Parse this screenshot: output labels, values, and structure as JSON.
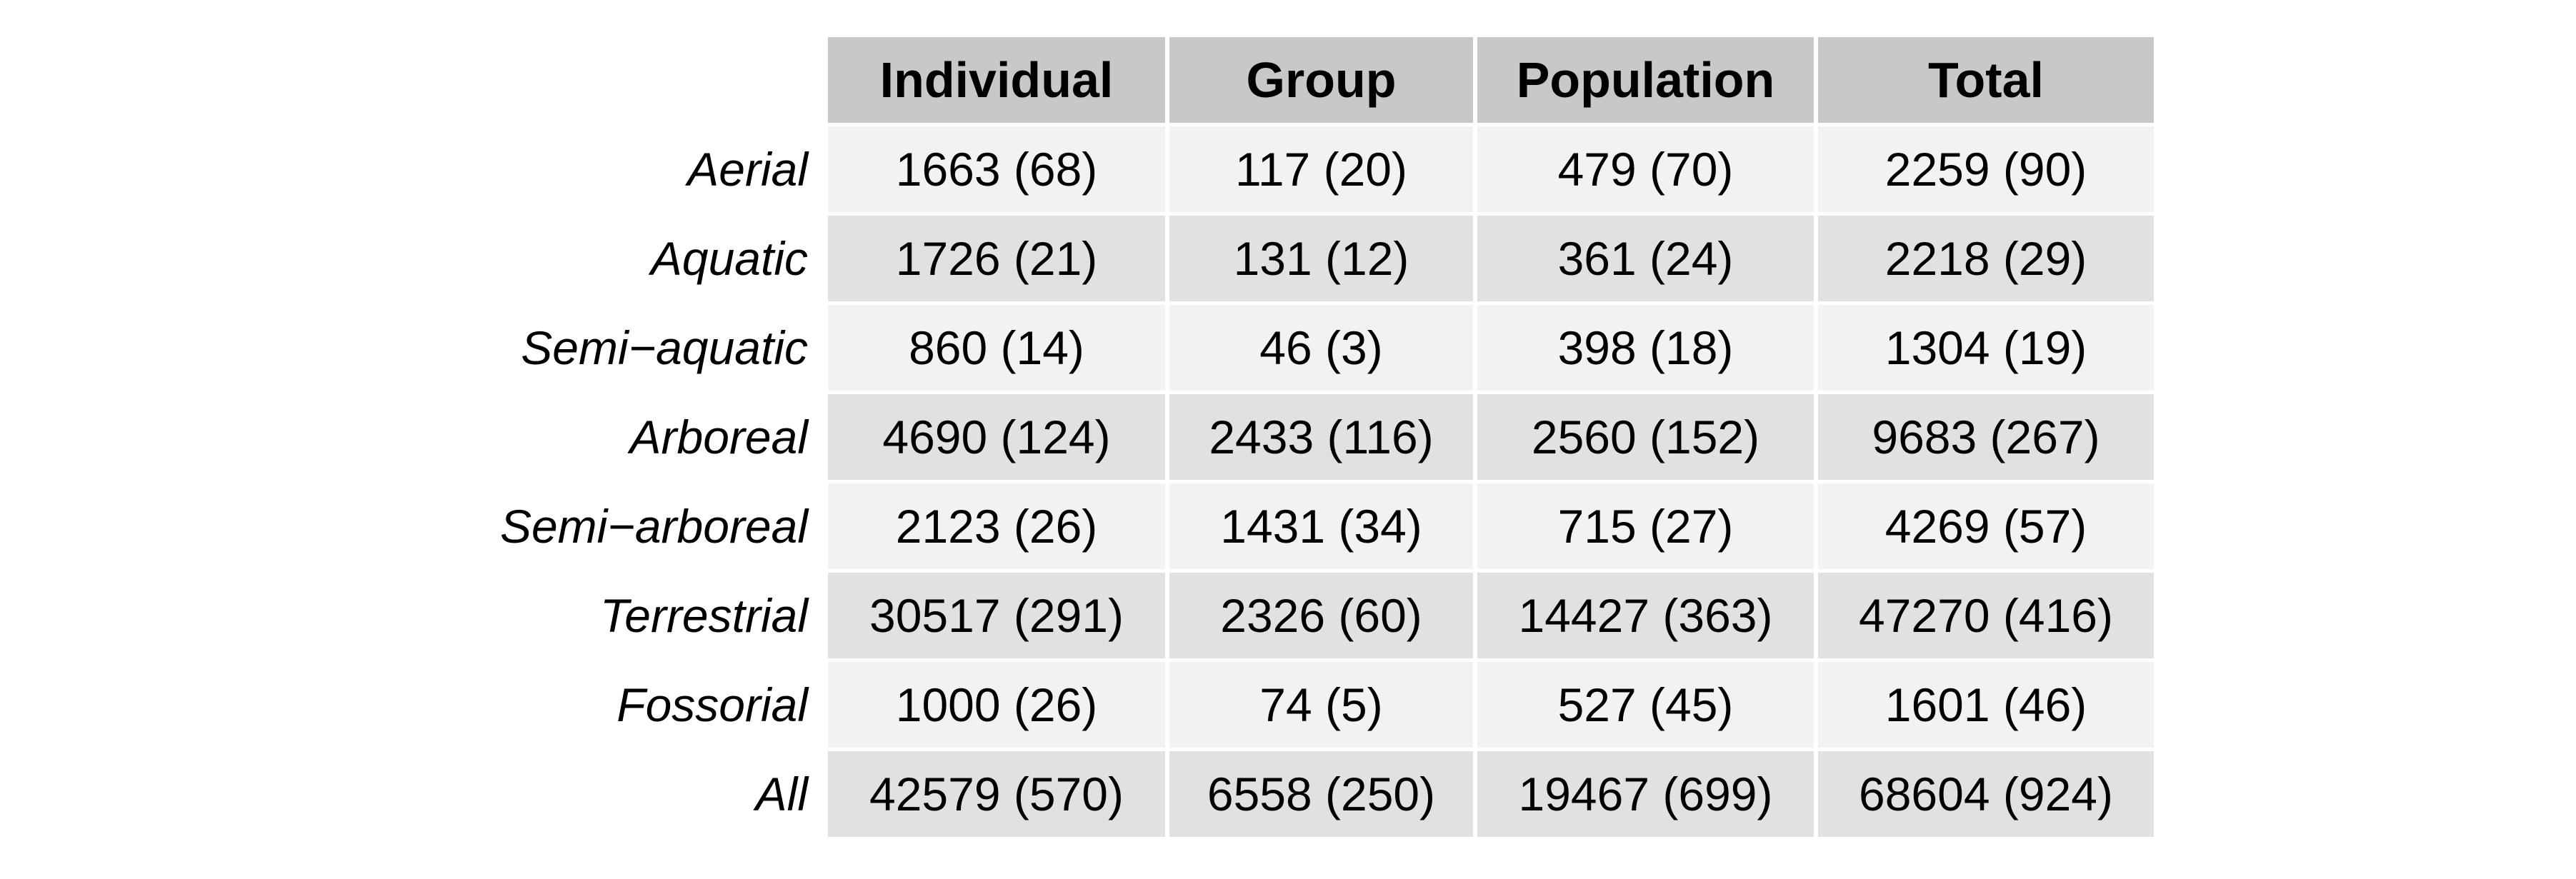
{
  "chart_data": {
    "type": "table",
    "title": "",
    "columns": [
      "Individual",
      "Group",
      "Population",
      "Total"
    ],
    "rows": [
      {
        "label": "Aerial",
        "cells": [
          "1663 (68)",
          "117 (20)",
          "479 (70)",
          "2259 (90)"
        ]
      },
      {
        "label": "Aquatic",
        "cells": [
          "1726 (21)",
          "131 (12)",
          "361 (24)",
          "2218 (29)"
        ]
      },
      {
        "label": "Semi−aquatic",
        "cells": [
          "860 (14)",
          "46 (3)",
          "398 (18)",
          "1304 (19)"
        ]
      },
      {
        "label": "Arboreal",
        "cells": [
          "4690 (124)",
          "2433 (116)",
          "2560 (152)",
          "9683 (267)"
        ]
      },
      {
        "label": "Semi−arboreal",
        "cells": [
          "2123 (26)",
          "1431 (34)",
          "715 (27)",
          "4269 (57)"
        ]
      },
      {
        "label": "Terrestrial",
        "cells": [
          "30517 (291)",
          "2326 (60)",
          "14427 (363)",
          "47270 (416)"
        ]
      },
      {
        "label": "Fossorial",
        "cells": [
          "1000 (26)",
          "74 (5)",
          "527 (45)",
          "1601 (46)"
        ]
      },
      {
        "label": "All",
        "cells": [
          "42579 (570)",
          "6558 (250)",
          "19467 (699)",
          "68604 (924)"
        ]
      }
    ]
  },
  "colors": {
    "header_bg": "#c8c8c8",
    "row_light": "#f2f2f2",
    "row_dark": "#e1e1e1",
    "text": "#000000",
    "gridline": "#ffffff"
  }
}
